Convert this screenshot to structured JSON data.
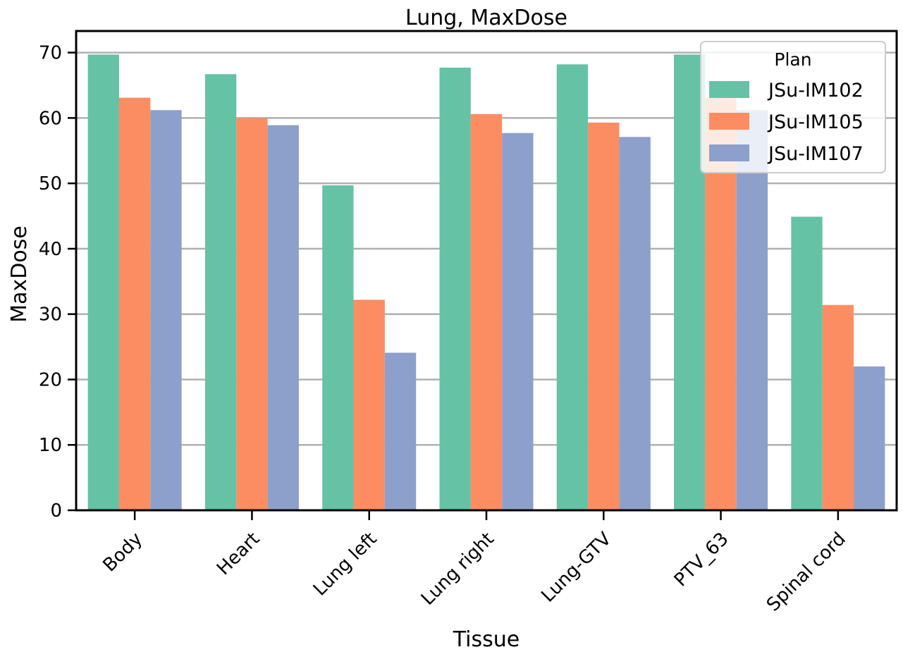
{
  "chart_data": {
    "type": "bar",
    "title": "Lung, MaxDose",
    "xlabel": "Tissue",
    "ylabel": "MaxDose",
    "ylim": [
      0,
      73.3
    ],
    "yticks": [
      0,
      10,
      20,
      30,
      40,
      50,
      60,
      70
    ],
    "grid": "horizontal",
    "legend_title": "Plan",
    "legend_position": "top-right",
    "categories": [
      "Body",
      "Heart",
      "Lung left",
      "Lung right",
      "Lung-GTV",
      "PTV_63",
      "Spinal cord"
    ],
    "series": [
      {
        "name": "JSu-IM102",
        "color": "#66c2a5",
        "values": [
          69.7,
          66.7,
          49.7,
          67.7,
          68.2,
          69.7,
          44.9
        ]
      },
      {
        "name": "JSu-IM105",
        "color": "#fc8d62",
        "values": [
          63.1,
          60.0,
          32.2,
          60.6,
          59.3,
          63.1,
          31.4
        ]
      },
      {
        "name": "JSu-IM107",
        "color": "#8da0cb",
        "values": [
          61.2,
          58.9,
          24.1,
          57.7,
          57.1,
          61.2,
          22.0
        ]
      }
    ]
  }
}
